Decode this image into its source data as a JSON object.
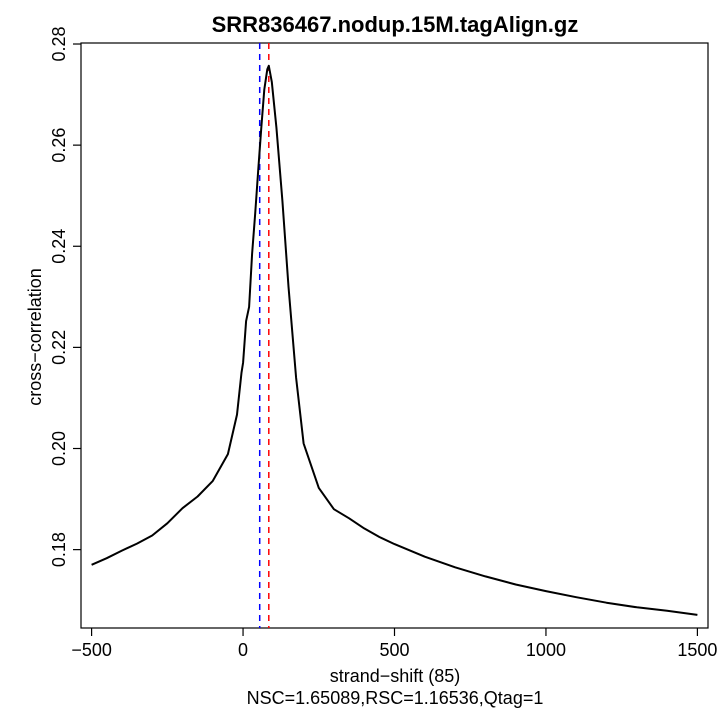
{
  "chart_data": {
    "type": "line",
    "title": "SRR836467.nodup.15M.tagAlign.gz",
    "xlabel": "strand−shift (85)",
    "ylabel": "cross−correlation",
    "subtitle": "NSC=1.65089,RSC=1.16536,Qtag=1",
    "xlim": [
      -535,
      1535
    ],
    "ylim": [
      0.1645,
      0.2802
    ],
    "xticks": [
      -500,
      0,
      500,
      1000,
      1500
    ],
    "xtick_labels": [
      "−500",
      "0",
      "500",
      "1000",
      "1500"
    ],
    "yticks": [
      0.18,
      0.2,
      0.22,
      0.24,
      0.26,
      0.28
    ],
    "ytick_labels": [
      "0.18",
      "0.20",
      "0.22",
      "0.24",
      "0.26",
      "0.28"
    ],
    "grid": false,
    "series": [
      {
        "color": "#000000",
        "x": [
          -500,
          -450,
          -400,
          -350,
          -300,
          -250,
          -200,
          -150,
          -100,
          -50,
          -20,
          -5,
          0,
          10,
          20,
          30,
          40,
          50,
          60,
          70,
          80,
          85,
          95,
          110,
          130,
          150,
          175,
          200,
          250,
          300,
          350,
          400,
          450,
          500,
          600,
          700,
          800,
          900,
          1000,
          1100,
          1200,
          1300,
          1400,
          1500
        ],
        "y": [
          0.177,
          0.1783,
          0.1798,
          0.1812,
          0.1828,
          0.1852,
          0.1882,
          0.1905,
          0.1936,
          0.1989,
          0.2067,
          0.215,
          0.217,
          0.2252,
          0.228,
          0.2385,
          0.2465,
          0.255,
          0.2632,
          0.271,
          0.275,
          0.2757,
          0.2725,
          0.2635,
          0.249,
          0.232,
          0.214,
          0.201,
          0.1922,
          0.188,
          0.1862,
          0.1842,
          0.1825,
          0.1811,
          0.1786,
          0.1765,
          0.1747,
          0.1731,
          0.1718,
          0.1706,
          0.1695,
          0.1686,
          0.1679,
          0.1671
        ]
      }
    ],
    "vlines": [
      {
        "x": 55,
        "color": "#0000ff",
        "style": "dashed"
      },
      {
        "x": 85,
        "color": "#ff0000",
        "style": "dashed"
      }
    ]
  }
}
